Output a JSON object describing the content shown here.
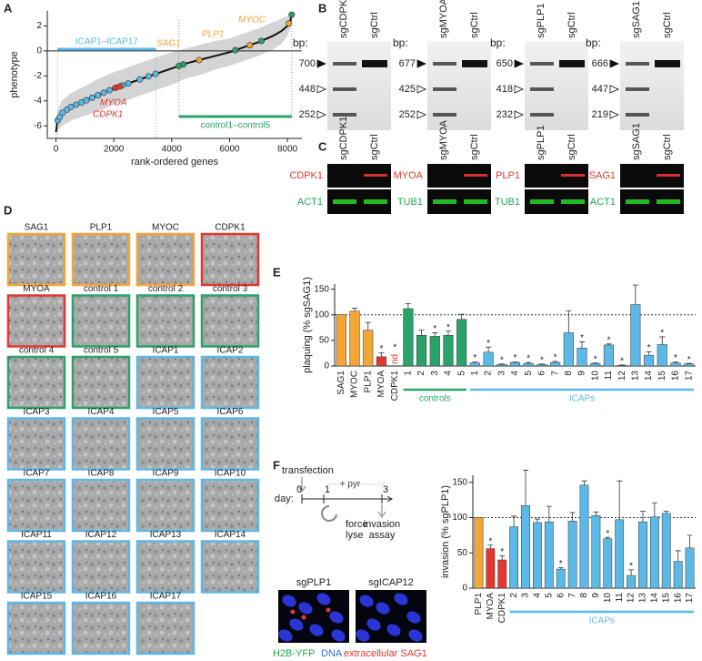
{
  "panel_labels": [
    "A",
    "B",
    "C",
    "D",
    "E",
    "F"
  ],
  "chart_data": [
    {
      "type": "line",
      "ylabel": "phenotype",
      "xlabel": "rank-ordered genes",
      "color": "#111111",
      "band_color": "#d4d4d4",
      "x": [
        0,
        50,
        200,
        500,
        1000,
        1500,
        2000,
        2500,
        3000,
        3500,
        4000,
        4500,
        5000,
        5500,
        6000,
        6500,
        7000,
        7500,
        7800,
        8000,
        8100,
        8150
      ],
      "values": [
        -6.5,
        -5.6,
        -5.0,
        -4.5,
        -4.0,
        -3.5,
        -3.0,
        -2.6,
        -2.2,
        -1.8,
        -1.4,
        -1.0,
        -0.7,
        -0.4,
        -0.1,
        0.3,
        0.7,
        1.2,
        1.6,
        2.0,
        2.4,
        2.9
      ],
      "band_lower": [
        -7.0,
        -6.4,
        -6.0,
        -5.6,
        -5.2,
        -4.8,
        -4.3,
        -3.9,
        -3.5,
        -3.1,
        -2.7,
        -2.2,
        -1.9,
        -1.5,
        -1.2,
        -0.8,
        -0.4,
        0.1,
        0.6,
        1.2,
        1.8,
        2.5
      ],
      "band_upper": [
        -6.0,
        -4.8,
        -4.0,
        -3.4,
        -2.8,
        -2.2,
        -1.7,
        -1.3,
        -0.9,
        -0.5,
        -0.1,
        0.2,
        0.5,
        0.8,
        1.0,
        1.4,
        1.8,
        2.3,
        2.6,
        2.8,
        3.0,
        3.1
      ],
      "xlim": [
        -300,
        8500
      ],
      "ylim": [
        -7,
        3.2
      ],
      "xticks": [
        0,
        2000,
        4000,
        6000,
        8000
      ],
      "yticks": [
        -6,
        -4,
        -2,
        0,
        2
      ],
      "zero_line": true,
      "highlights": [
        {
          "color": "#5cb8e6",
          "x": [
            60,
            130,
            230,
            380,
            520,
            700,
            880,
            1050,
            1250,
            1450,
            1650,
            1850,
            2300,
            2500,
            2900,
            3200,
            3450
          ],
          "values": [
            -5.55,
            -5.3,
            -4.95,
            -4.7,
            -4.48,
            -4.3,
            -4.12,
            -3.95,
            -3.75,
            -3.55,
            -3.35,
            -3.15,
            -2.76,
            -2.6,
            -2.28,
            -2.04,
            -1.84
          ]
        },
        {
          "color": "#2aa36b",
          "x": [
            4250,
            4400,
            6200,
            7100,
            8150
          ],
          "values": [
            -1.2,
            -1.08,
            0.06,
            0.8,
            2.9
          ]
        },
        {
          "color": "#f3a536",
          "x": [
            4950,
            6700,
            8050
          ],
          "values": [
            -0.73,
            0.45,
            2.2
          ]
        },
        {
          "color": "#e2382f",
          "x": [
            2050,
            2200
          ],
          "values": [
            -2.96,
            -2.85
          ]
        }
      ],
      "annotations": [
        {
          "text": "ICAP1–ICAP17",
          "color": "#5cb8e6"
        },
        {
          "text": "SAG1",
          "color": "#f3a536"
        },
        {
          "text": "PLP1",
          "color": "#f3a536"
        },
        {
          "text": "MYOC",
          "color": "#f3a536"
        },
        {
          "text": "MYOA",
          "color": "#e2382f"
        },
        {
          "text": "CDPK1",
          "color": "#e2382f"
        },
        {
          "text": "control1–control5",
          "color": "#2aa36b"
        }
      ]
    },
    {
      "type": "bar",
      "ylabel": "plaquing (% sgSAG1)",
      "ylim": [
        0,
        160
      ],
      "yticks": [
        0,
        50,
        100,
        150
      ],
      "ref_line": 100,
      "groups": [
        {
          "color": "#f3a536",
          "categories": [
            "SAG1",
            "MYOC",
            "PLP1"
          ],
          "values": [
            100,
            107,
            70
          ],
          "errors": [
            null,
            6,
            15
          ]
        },
        {
          "color": "#e2382f",
          "categories": [
            "MYOA",
            "CDPK1"
          ],
          "values": [
            18,
            null
          ],
          "value_labels": [
            null,
            "nd"
          ],
          "errors": [
            8,
            null
          ],
          "significance": [
            "*",
            "*"
          ]
        },
        {
          "color": "#2aa36b",
          "label": "controls",
          "categories": [
            "1",
            "2",
            "3",
            "4",
            "5"
          ],
          "values": [
            112,
            60,
            58,
            60,
            91
          ],
          "errors": [
            10,
            10,
            7,
            8,
            10
          ],
          "significance": [
            null,
            null,
            "*",
            "*",
            null
          ]
        },
        {
          "color": "#5cb8e6",
          "label": "ICAPs",
          "categories": [
            "1",
            "2",
            "3",
            "4",
            "5",
            "6",
            "7",
            "8",
            "9",
            "10",
            "11",
            "12",
            "13",
            "14",
            "15",
            "16",
            "17"
          ],
          "values": [
            6,
            27,
            3,
            7,
            5,
            3,
            7,
            65,
            35,
            5,
            41,
            1,
            120,
            21,
            42,
            6,
            4
          ],
          "errors": [
            2,
            10,
            1,
            1,
            2,
            1,
            2,
            43,
            12,
            1,
            2,
            1,
            38,
            7,
            15,
            2,
            1
          ],
          "significance": [
            "*",
            "*",
            "*",
            "*",
            "*",
            "*",
            "*",
            null,
            "*",
            "*",
            "*",
            "*",
            null,
            "*",
            "*",
            "*",
            "*"
          ]
        }
      ]
    },
    {
      "type": "bar",
      "ylabel": "invasion (% sgPLP1)",
      "ylim": [
        0,
        160
      ],
      "yticks": [
        0,
        50,
        100,
        150
      ],
      "ref_line": 100,
      "groups": [
        {
          "color": "#f3a536",
          "categories": [
            "PLP1"
          ],
          "values": [
            100
          ],
          "errors": [
            null
          ]
        },
        {
          "color": "#e2382f",
          "categories": [
            "MYOA",
            "CDPK1"
          ],
          "values": [
            56,
            40
          ],
          "errors": [
            5,
            6
          ],
          "significance": [
            "*",
            "*"
          ]
        },
        {
          "color": "#5cb8e6",
          "label": "ICAPs",
          "categories": [
            "2",
            "3",
            "4",
            "5",
            "6",
            "7",
            "8",
            "9",
            "10",
            "11",
            "12",
            "13",
            "14",
            "15",
            "16",
            "17"
          ],
          "values": [
            87,
            117,
            93,
            94,
            27,
            95,
            146,
            103,
            70,
            97,
            18,
            94,
            101,
            106,
            38,
            57
          ],
          "errors": [
            15,
            50,
            5,
            22,
            2,
            12,
            6,
            5,
            2,
            55,
            8,
            15,
            20,
            3,
            15,
            18
          ],
          "significance": [
            null,
            null,
            null,
            null,
            "*",
            null,
            null,
            null,
            "*",
            null,
            "*",
            null,
            null,
            null,
            null,
            null
          ]
        }
      ]
    }
  ],
  "gels": [
    {
      "lanes": [
        "sgCDPK1",
        "sgCtrl"
      ],
      "bp_label": "bp:",
      "markers": [
        700,
        448,
        252
      ]
    },
    {
      "lanes": [
        "sgMYOA",
        "sgCtrl"
      ],
      "bp_label": "bp:",
      "markers": [
        677,
        425,
        252
      ]
    },
    {
      "lanes": [
        "sgPLP1",
        "sgCtrl"
      ],
      "bp_label": "bp:",
      "markers": [
        650,
        418,
        232
      ]
    },
    {
      "lanes": [
        "sgSAG1",
        "sgCtrl"
      ],
      "bp_label": "bp:",
      "markers": [
        666,
        447,
        219
      ]
    }
  ],
  "westerns": [
    {
      "lanes": [
        "sgCDPK1",
        "sgCtrl"
      ],
      "top": "CDPK1",
      "bottom": "ACT1"
    },
    {
      "lanes": [
        "sgMYOA",
        "sgCtrl"
      ],
      "top": "MYOA",
      "bottom": "TUB1"
    },
    {
      "lanes": [
        "sgPLP1",
        "sgCtrl"
      ],
      "top": "PLP1",
      "bottom": "TUB1"
    },
    {
      "lanes": [
        "sgSAG1",
        "sgCtrl"
      ],
      "top": "SAG1",
      "bottom": "ACT1"
    }
  ],
  "plaque_images": [
    {
      "label": "SAG1",
      "color": "#f3a536"
    },
    {
      "label": "PLP1",
      "color": "#f3a536"
    },
    {
      "label": "MYOC",
      "color": "#f3a536"
    },
    {
      "label": "CDPK1",
      "color": "#e2382f"
    },
    {
      "label": "MYOA",
      "color": "#e2382f"
    },
    {
      "label": "control 1",
      "color": "#2aa36b"
    },
    {
      "label": "control 2",
      "color": "#2aa36b"
    },
    {
      "label": "control 3",
      "color": "#2aa36b"
    },
    {
      "label": "control 4",
      "color": "#2aa36b"
    },
    {
      "label": "control 5",
      "color": "#2aa36b"
    },
    {
      "label": "ICAP1",
      "color": "#5cb8e6"
    },
    {
      "label": "ICAP2",
      "color": "#5cb8e6"
    },
    {
      "label": "ICAP3",
      "color": "#5cb8e6"
    },
    {
      "label": "ICAP4",
      "color": "#5cb8e6"
    },
    {
      "label": "ICAP5",
      "color": "#5cb8e6"
    },
    {
      "label": "ICAP6",
      "color": "#5cb8e6"
    },
    {
      "label": "ICAP7",
      "color": "#5cb8e6"
    },
    {
      "label": "ICAP8",
      "color": "#5cb8e6"
    },
    {
      "label": "ICAP9",
      "color": "#5cb8e6"
    },
    {
      "label": "ICAP10",
      "color": "#5cb8e6"
    },
    {
      "label": "ICAP11",
      "color": "#5cb8e6"
    },
    {
      "label": "ICAP12",
      "color": "#5cb8e6"
    },
    {
      "label": "ICAP13",
      "color": "#5cb8e6"
    },
    {
      "label": "ICAP14",
      "color": "#5cb8e6"
    },
    {
      "label": "ICAP15",
      "color": "#5cb8e6"
    },
    {
      "label": "ICAP16",
      "color": "#5cb8e6"
    },
    {
      "label": "ICAP17",
      "color": "#5cb8e6"
    }
  ],
  "timeline": {
    "start": "transfection",
    "day_label": "day:",
    "days": [
      "0",
      "1",
      "3"
    ],
    "drug": "+ pyr",
    "steps": [
      [
        "force",
        "lyse"
      ],
      [
        "invasion",
        "assay"
      ]
    ]
  },
  "micrographs": {
    "images": [
      "sgPLP1",
      "sgICAP12"
    ],
    "legend": [
      "H2B-YFP",
      "DNA",
      "extracellular SAG1"
    ]
  }
}
